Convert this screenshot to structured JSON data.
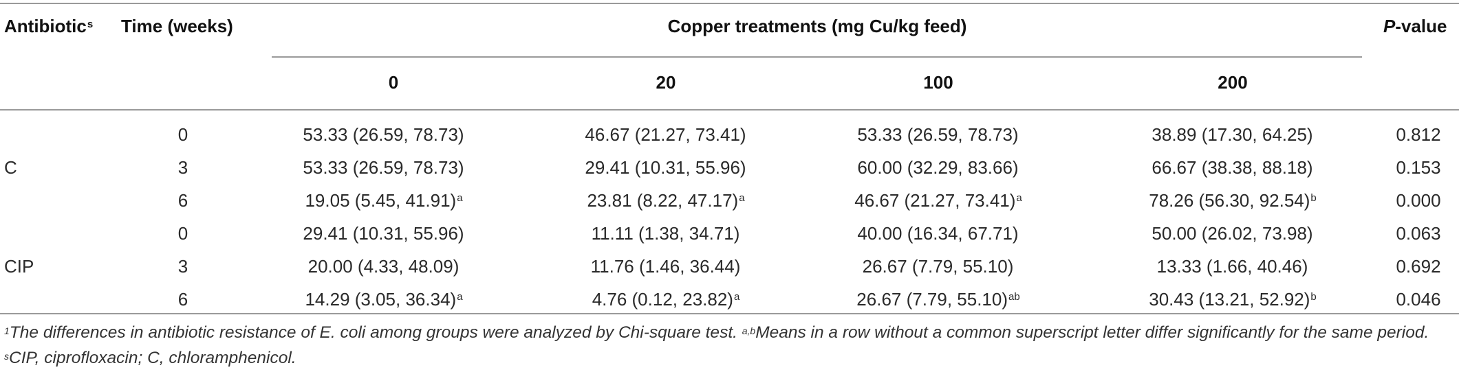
{
  "header": {
    "antibiotic": "Antibiotic",
    "antibiotic_sup": "s",
    "time": "Time (weeks)",
    "copper": "Copper treatments (mg Cu/kg feed)",
    "pvalue_italic": "P",
    "pvalue_rest": "-value",
    "doses": [
      "0",
      "20",
      "100",
      "200"
    ]
  },
  "rows": [
    {
      "antibiotic": "",
      "time": "0",
      "v0": "53.33 (26.59, 78.73)",
      "s0": "",
      "v20": "46.67 (21.27, 73.41)",
      "s20": "",
      "v100": "53.33 (26.59, 78.73)",
      "s100": "",
      "v200": "38.89 (17.30, 64.25)",
      "s200": "",
      "p": "0.812"
    },
    {
      "antibiotic": "C",
      "time": "3",
      "v0": "53.33 (26.59, 78.73)",
      "s0": "",
      "v20": "29.41 (10.31, 55.96)",
      "s20": "",
      "v100": "60.00 (32.29, 83.66)",
      "s100": "",
      "v200": "66.67 (38.38, 88.18)",
      "s200": "",
      "p": "0.153"
    },
    {
      "antibiotic": "",
      "time": "6",
      "v0": "19.05 (5.45, 41.91)",
      "s0": "a",
      "v20": "23.81 (8.22, 47.17)",
      "s20": "a",
      "v100": "46.67 (21.27, 73.41)",
      "s100": "a",
      "v200": "78.26 (56.30, 92.54)",
      "s200": "b",
      "p": "0.000"
    },
    {
      "antibiotic": "",
      "time": "0",
      "v0": "29.41 (10.31, 55.96)",
      "s0": "",
      "v20": "11.11 (1.38, 34.71)",
      "s20": "",
      "v100": "40.00 (16.34, 67.71)",
      "s100": "",
      "v200": "50.00 (26.02, 73.98)",
      "s200": "",
      "p": "0.063"
    },
    {
      "antibiotic": "CIP",
      "time": "3",
      "v0": "20.00 (4.33, 48.09)",
      "s0": "",
      "v20": "11.76 (1.46, 36.44)",
      "s20": "",
      "v100": "26.67 (7.79, 55.10)",
      "s100": "",
      "v200": "13.33 (1.66, 40.46)",
      "s200": "",
      "p": "0.692"
    },
    {
      "antibiotic": "",
      "time": "6",
      "v0": "14.29 (3.05, 36.34)",
      "s0": "a",
      "v20": "4.76 (0.12, 23.82)",
      "s20": "a",
      "v100": "26.67 (7.79, 55.10)",
      "s100": "ab",
      "v200": "30.43 (13.21, 52.92)",
      "s200": "b",
      "p": "0.046"
    }
  ],
  "footnote": {
    "sup1": "1",
    "text1": "The differences in antibiotic resistance of E. coli among groups were analyzed by Chi-square test.",
    "sup2": "a,b",
    "text2": "Means in a row without a common superscript letter differ significantly for the same period.",
    "sup3": "s",
    "text3": "CIP, ciprofloxacin; C, chloramphenicol."
  }
}
